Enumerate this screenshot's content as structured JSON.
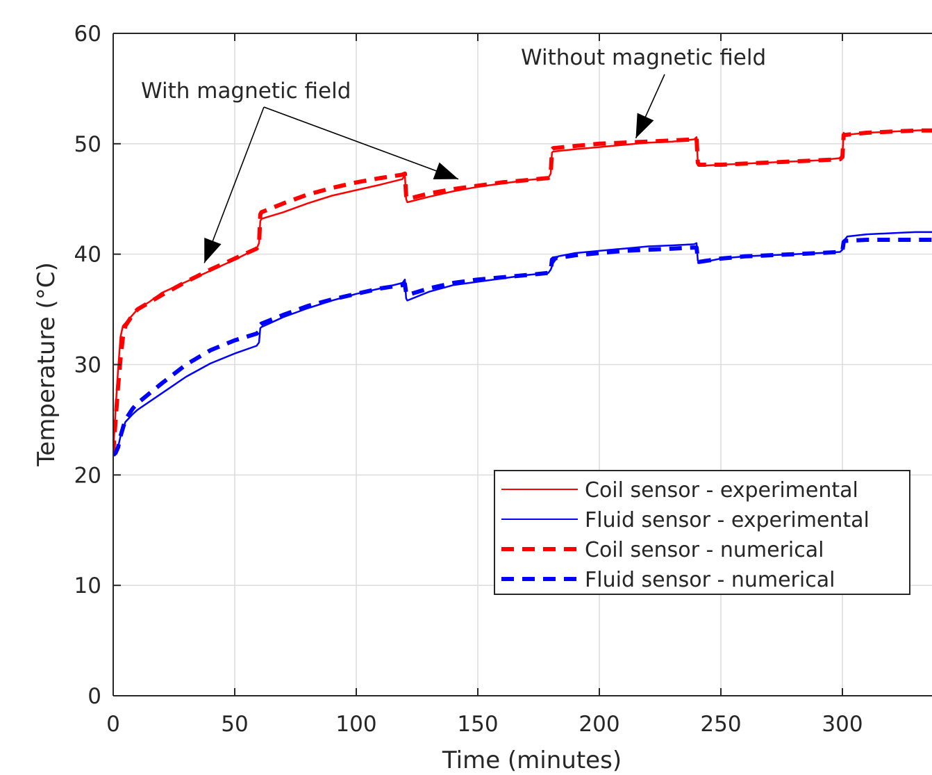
{
  "chart_data": {
    "type": "line",
    "title": "",
    "xlabel": "Time (minutes)",
    "ylabel": "Temperature (°C)",
    "xlim": [
      0,
      340
    ],
    "ylim": [
      0,
      60
    ],
    "xticks": [
      "0",
      "50",
      "100",
      "150",
      "200",
      "250",
      "300"
    ],
    "yticks": [
      "0",
      "10",
      "20",
      "30",
      "40",
      "50",
      "60"
    ],
    "grid": true,
    "legend_position": "lower-right",
    "series": [
      {
        "name": "Coil sensor - experimental",
        "color": "#ff0000",
        "style": "solid",
        "x": [
          0,
          1,
          2,
          3,
          4,
          6,
          10,
          15,
          20,
          30,
          40,
          50,
          59,
          60,
          60.5,
          61,
          70,
          80,
          90,
          100,
          110,
          119,
          120,
          120.5,
          121,
          130,
          140,
          150,
          160,
          170,
          179,
          180,
          180.5,
          181,
          190,
          200,
          210,
          220,
          230,
          239,
          240,
          240.5,
          241,
          250,
          260,
          270,
          280,
          290,
          299,
          300,
          300.5,
          301,
          310,
          320,
          330,
          340
        ],
        "y": [
          22,
          26,
          29.5,
          32.5,
          33.5,
          34,
          35,
          35.7,
          36.5,
          37.5,
          38.5,
          39.5,
          40.5,
          41,
          43,
          43.2,
          43.8,
          44.6,
          45.3,
          45.8,
          46.3,
          46.8,
          47.2,
          45,
          44.7,
          45.2,
          45.7,
          46.1,
          46.4,
          46.7,
          46.9,
          47.3,
          49.2,
          49.3,
          49.5,
          49.7,
          49.9,
          50.1,
          50.2,
          50.4,
          50.6,
          48.3,
          48,
          48.1,
          48.2,
          48.3,
          48.4,
          48.5,
          48.7,
          49,
          51,
          50.8,
          51,
          51.1,
          51.2,
          51.3
        ]
      },
      {
        "name": "Fluid sensor - experimental",
        "color": "#0000ff",
        "style": "solid",
        "x": [
          0,
          1,
          2,
          3,
          5,
          8,
          10,
          20,
          30,
          40,
          50,
          59,
          60,
          60.5,
          61,
          70,
          80,
          90,
          100,
          110,
          119,
          120,
          120.5,
          121,
          130,
          140,
          150,
          160,
          170,
          179,
          180,
          181,
          183,
          190,
          200,
          210,
          220,
          230,
          239,
          240,
          240.5,
          241,
          250,
          260,
          270,
          280,
          290,
          299,
          300,
          300.5,
          302,
          310,
          320,
          330,
          340
        ],
        "y": [
          21.8,
          22,
          22.5,
          23.5,
          24.8,
          25.5,
          25.9,
          27.4,
          28.9,
          30.1,
          31,
          31.7,
          32,
          33.3,
          33.4,
          34.3,
          35.1,
          35.8,
          36.4,
          36.9,
          37.4,
          37.7,
          36,
          35.8,
          36.6,
          37.2,
          37.5,
          37.8,
          38.1,
          38.3,
          38.6,
          39.2,
          39.8,
          40.1,
          40.3,
          40.5,
          40.7,
          40.8,
          40.9,
          41,
          39.4,
          39.2,
          39.6,
          39.8,
          39.9,
          40,
          40.1,
          40.2,
          40.4,
          41.2,
          41.6,
          41.8,
          41.9,
          42,
          42
        ]
      },
      {
        "name": "Coil sensor - numerical",
        "color": "#ff0000",
        "style": "dashed",
        "x": [
          0,
          1,
          2,
          3,
          4,
          5,
          8,
          10,
          20,
          30,
          40,
          50,
          59,
          60,
          60.5,
          61,
          70,
          80,
          90,
          100,
          110,
          119,
          120,
          120.5,
          121,
          130,
          140,
          150,
          160,
          170,
          179,
          180,
          180.5,
          181,
          190,
          200,
          210,
          220,
          230,
          239,
          240,
          240.5,
          241,
          250,
          260,
          270,
          280,
          290,
          299,
          300,
          300.5,
          301,
          310,
          320,
          330,
          340
        ],
        "y": [
          22,
          25,
          28,
          30.5,
          32.5,
          33.5,
          34.5,
          35,
          36.3,
          37.5,
          38.6,
          39.6,
          40.5,
          40.8,
          43.6,
          43.8,
          44.6,
          45.4,
          46,
          46.5,
          46.9,
          47.2,
          47.3,
          45.3,
          45,
          45.5,
          45.9,
          46.2,
          46.5,
          46.7,
          46.9,
          47.2,
          49.5,
          49.6,
          49.8,
          50,
          50.1,
          50.2,
          50.3,
          50.4,
          50.5,
          48.3,
          48.1,
          48.1,
          48.2,
          48.3,
          48.4,
          48.5,
          48.6,
          48.8,
          50.8,
          50.8,
          51,
          51.1,
          51.2,
          51.2
        ]
      },
      {
        "name": "Fluid sensor - numerical",
        "color": "#0000ff",
        "style": "dashed",
        "x": [
          0,
          1,
          2,
          3,
          5,
          8,
          10,
          20,
          30,
          40,
          50,
          59,
          60,
          60.5,
          61,
          70,
          80,
          90,
          100,
          110,
          119,
          120,
          120.5,
          121,
          130,
          140,
          150,
          160,
          170,
          179,
          180,
          180.5,
          181,
          190,
          200,
          210,
          220,
          230,
          239,
          240,
          240.5,
          241,
          250,
          260,
          270,
          280,
          290,
          299,
          300,
          300.5,
          301,
          310,
          320,
          330,
          340
        ],
        "y": [
          21.8,
          22,
          22.5,
          23.5,
          25,
          26,
          26.5,
          28.3,
          30,
          31.3,
          32.2,
          32.8,
          33,
          33.6,
          33.7,
          34.5,
          35.3,
          35.9,
          36.4,
          36.9,
          37.2,
          37.3,
          36.5,
          36.3,
          36.9,
          37.4,
          37.7,
          37.9,
          38.1,
          38.3,
          38.5,
          39.5,
          39.6,
          39.9,
          40.1,
          40.3,
          40.4,
          40.5,
          40.6,
          40.6,
          39.5,
          39.3,
          39.6,
          39.8,
          39.9,
          40,
          40.1,
          40.2,
          40.3,
          41.1,
          41.2,
          41.3,
          41.3,
          41.3,
          41.3
        ]
      }
    ],
    "annotations": [
      {
        "text": "With magnetic field"
      },
      {
        "text": "Without magnetic field"
      }
    ]
  }
}
